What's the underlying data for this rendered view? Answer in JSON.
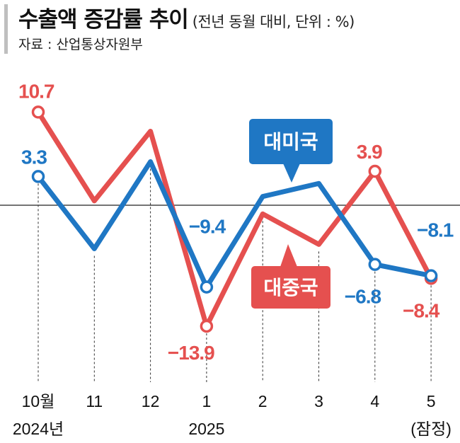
{
  "header": {
    "title": "수출액 증감률 추이",
    "subtitle": "(전년 동월 대비, 단위 : %)",
    "source": "자료 :  산업통상자원부"
  },
  "chart_data": {
    "type": "line",
    "categories": [
      "10월",
      "11",
      "12",
      "1",
      "2",
      "3",
      "4",
      "5"
    ],
    "year_labels": [
      "2024년",
      "",
      "",
      "2025",
      "",
      "",
      "",
      "(잠정)"
    ],
    "ylim": [
      -20,
      14
    ],
    "zero_line": true,
    "series": [
      {
        "name": "대미국",
        "color": "#1f77c4",
        "values": [
          3.3,
          -5.0,
          5.0,
          -9.4,
          1.0,
          2.5,
          -6.8,
          -8.1
        ],
        "labels": [
          "3.3",
          "",
          "",
          "−9.4",
          "",
          "",
          "−6.8",
          "−8.1"
        ],
        "open_markers": [
          0,
          3,
          6,
          7
        ]
      },
      {
        "name": "대중국",
        "color": "#e5504f",
        "values": [
          10.7,
          0.5,
          8.5,
          -13.9,
          -1.0,
          -4.5,
          3.9,
          -8.4
        ],
        "labels": [
          "10.7",
          "",
          "",
          "−13.9",
          "",
          "",
          "3.9",
          "−8.4"
        ],
        "open_markers": [
          0,
          3,
          6,
          7
        ]
      }
    ]
  }
}
